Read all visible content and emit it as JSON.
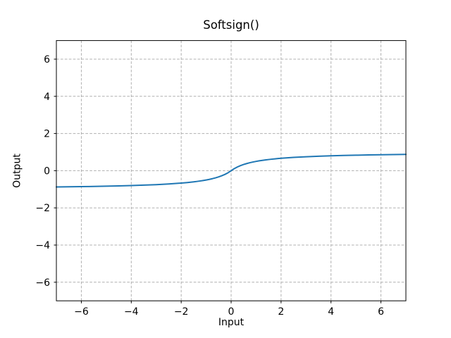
{
  "chart_data": {
    "type": "line",
    "title": "Softsign()",
    "xlabel": "Input",
    "ylabel": "Output",
    "xlim": [
      -7,
      7
    ],
    "ylim": [
      -7,
      7
    ],
    "x_ticks": [
      -6,
      -4,
      -2,
      0,
      2,
      4,
      6
    ],
    "y_ticks": [
      -6,
      -4,
      -2,
      0,
      2,
      4,
      6
    ],
    "x_tick_labels": [
      "−6",
      "−4",
      "−2",
      "0",
      "2",
      "4",
      "6"
    ],
    "y_tick_labels": [
      "−6",
      "−4",
      "−2",
      "0",
      "2",
      "4",
      "6"
    ],
    "grid": "dashed",
    "legend": "none",
    "series": [
      {
        "name": "Softsign",
        "x": [
          -7,
          -6.5,
          -6,
          -5.5,
          -5,
          -4.5,
          -4,
          -3.5,
          -3,
          -2.5,
          -2,
          -1.875,
          -1.75,
          -1.625,
          -1.5,
          -1.375,
          -1.25,
          -1.125,
          -1,
          -0.875,
          -0.75,
          -0.625,
          -0.5,
          -0.375,
          -0.25,
          -0.125,
          0,
          0.125,
          0.25,
          0.375,
          0.5,
          0.625,
          0.75,
          0.875,
          1,
          1.125,
          1.25,
          1.375,
          1.5,
          1.625,
          1.75,
          1.875,
          2,
          2.5,
          3,
          3.5,
          4,
          4.5,
          5,
          5.5,
          6,
          6.5,
          7
        ],
        "y": [
          -0.875,
          -0.8667,
          -0.8571,
          -0.8462,
          -0.8333,
          -0.8182,
          -0.8,
          -0.7778,
          -0.75,
          -0.7143,
          -0.6667,
          -0.6522,
          -0.6364,
          -0.619,
          -0.6,
          -0.5789,
          -0.5556,
          -0.5294,
          -0.5,
          -0.4667,
          -0.4286,
          -0.3846,
          -0.3333,
          -0.2727,
          -0.2,
          -0.1111,
          0,
          0.1111,
          0.2,
          0.2727,
          0.3333,
          0.3846,
          0.4286,
          0.4667,
          0.5,
          0.5294,
          0.5556,
          0.5789,
          0.6,
          0.619,
          0.6364,
          0.6522,
          0.6667,
          0.7143,
          0.75,
          0.7778,
          0.8,
          0.8182,
          0.8333,
          0.8462,
          0.8571,
          0.8667,
          0.875
        ]
      }
    ]
  },
  "colors": {
    "line": "#1f77b4",
    "grid": "#b0b0b0",
    "axis_border": "#000000",
    "background": "#ffffff"
  }
}
